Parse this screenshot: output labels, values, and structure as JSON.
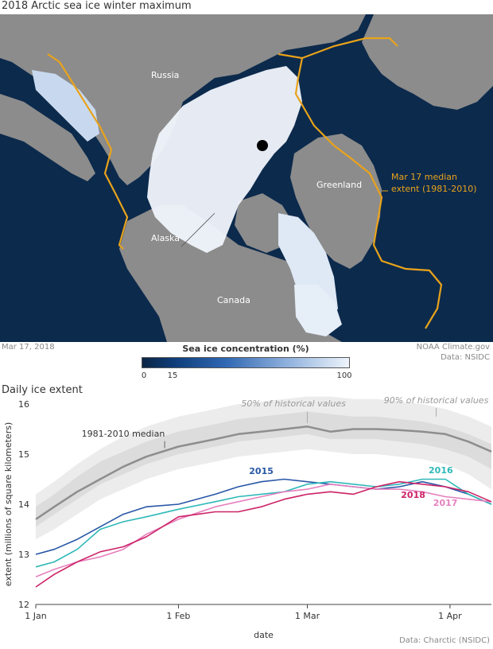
{
  "title": "2018 Arctic sea ice winter maximum",
  "map": {
    "labels": {
      "russia": "Russia",
      "greenland": "Greenland",
      "alaska": "Alaska",
      "canada": "Canada",
      "median_line_1": "Mar 17 median",
      "median_line_2": "extent (1981-2010)"
    },
    "colors": {
      "ocean": "#0c2a4c",
      "land": "#8c8c8c",
      "ice": "#eef3fa",
      "median": "#e9a31b"
    },
    "date": "Mar 17, 2018",
    "credit_1": "NOAA Climate.gov",
    "credit_2": "Data: NSIDC"
  },
  "colorbar": {
    "title": "Sea ice concentration (%)",
    "ticks": [
      "0",
      "15",
      "100"
    ]
  },
  "chart_subtitle": "Daily ice extent",
  "chart_credit": "Data: Charctic (NSIDC)",
  "chart_data": {
    "type": "line",
    "xlabel": "date",
    "ylabel": "extent (millions of square kilometers)",
    "ylim": [
      12,
      16
    ],
    "yticks": [
      "12",
      "13",
      "14",
      "15",
      "16"
    ],
    "xticks": [
      {
        "day": 1,
        "label": "1 Jan"
      },
      {
        "day": 32,
        "label": "1 Feb"
      },
      {
        "day": 60,
        "label": "1 Mar"
      },
      {
        "day": 91,
        "label": "1 Apr"
      }
    ],
    "xlim": [
      1,
      100
    ],
    "band_labels": {
      "p50": "50% of historical values",
      "p90": "90% of historical values"
    },
    "median_label": "1981-2010 median",
    "x": [
      1,
      5,
      10,
      15,
      20,
      25,
      32,
      40,
      45,
      50,
      55,
      60,
      65,
      70,
      75,
      80,
      85,
      90,
      95,
      100
    ],
    "bands": {
      "p90_low": [
        13.3,
        13.5,
        13.8,
        14.1,
        14.3,
        14.5,
        14.7,
        14.85,
        14.95,
        15.0,
        15.05,
        15.1,
        15.05,
        15.0,
        15.0,
        14.95,
        14.9,
        14.8,
        14.6,
        14.3
      ],
      "p90_high": [
        14.2,
        14.45,
        14.8,
        15.1,
        15.35,
        15.55,
        15.75,
        15.9,
        16.0,
        16.05,
        16.1,
        16.15,
        16.15,
        16.1,
        16.1,
        16.05,
        16.0,
        15.9,
        15.75,
        15.55
      ],
      "p50_low": [
        13.55,
        13.8,
        14.1,
        14.4,
        14.6,
        14.8,
        15.0,
        15.15,
        15.25,
        15.3,
        15.35,
        15.4,
        15.3,
        15.3,
        15.3,
        15.25,
        15.2,
        15.1,
        14.95,
        14.7
      ],
      "p50_high": [
        13.95,
        14.2,
        14.55,
        14.85,
        15.05,
        15.25,
        15.45,
        15.6,
        15.7,
        15.75,
        15.8,
        15.85,
        15.8,
        15.75,
        15.75,
        15.7,
        15.65,
        15.55,
        15.4,
        15.2
      ]
    },
    "median": [
      13.7,
      13.95,
      14.25,
      14.5,
      14.75,
      14.95,
      15.15,
      15.3,
      15.4,
      15.45,
      15.5,
      15.55,
      15.45,
      15.5,
      15.5,
      15.48,
      15.45,
      15.4,
      15.25,
      15.05
    ],
    "series": [
      {
        "name": "2015",
        "color": "#2856a6",
        "values": [
          13.0,
          13.1,
          13.3,
          13.55,
          13.8,
          13.95,
          14.0,
          14.2,
          14.35,
          14.45,
          14.5,
          14.45,
          14.4,
          14.35,
          14.3,
          14.35,
          14.45,
          14.35,
          14.2,
          14.0
        ]
      },
      {
        "name": "2016",
        "color": "#2fb8b8",
        "values": [
          12.75,
          12.85,
          13.1,
          13.5,
          13.65,
          13.75,
          13.9,
          14.05,
          14.15,
          14.2,
          14.25,
          14.4,
          14.45,
          14.4,
          14.35,
          14.4,
          14.5,
          14.5,
          14.2,
          14.0
        ]
      },
      {
        "name": "2017",
        "color": "#e680bf",
        "values": [
          12.55,
          12.7,
          12.85,
          12.95,
          13.1,
          13.4,
          13.7,
          13.95,
          14.05,
          14.15,
          14.25,
          14.3,
          14.4,
          14.35,
          14.3,
          14.3,
          14.25,
          14.15,
          14.1,
          14.05
        ]
      },
      {
        "name": "2018",
        "color": "#cc2266",
        "values": [
          12.35,
          12.6,
          12.85,
          13.05,
          13.15,
          13.35,
          13.75,
          13.85,
          13.85,
          13.95,
          14.1,
          14.2,
          14.25,
          14.2,
          14.35,
          14.45,
          14.4,
          14.35,
          14.25,
          14.05
        ]
      }
    ]
  }
}
